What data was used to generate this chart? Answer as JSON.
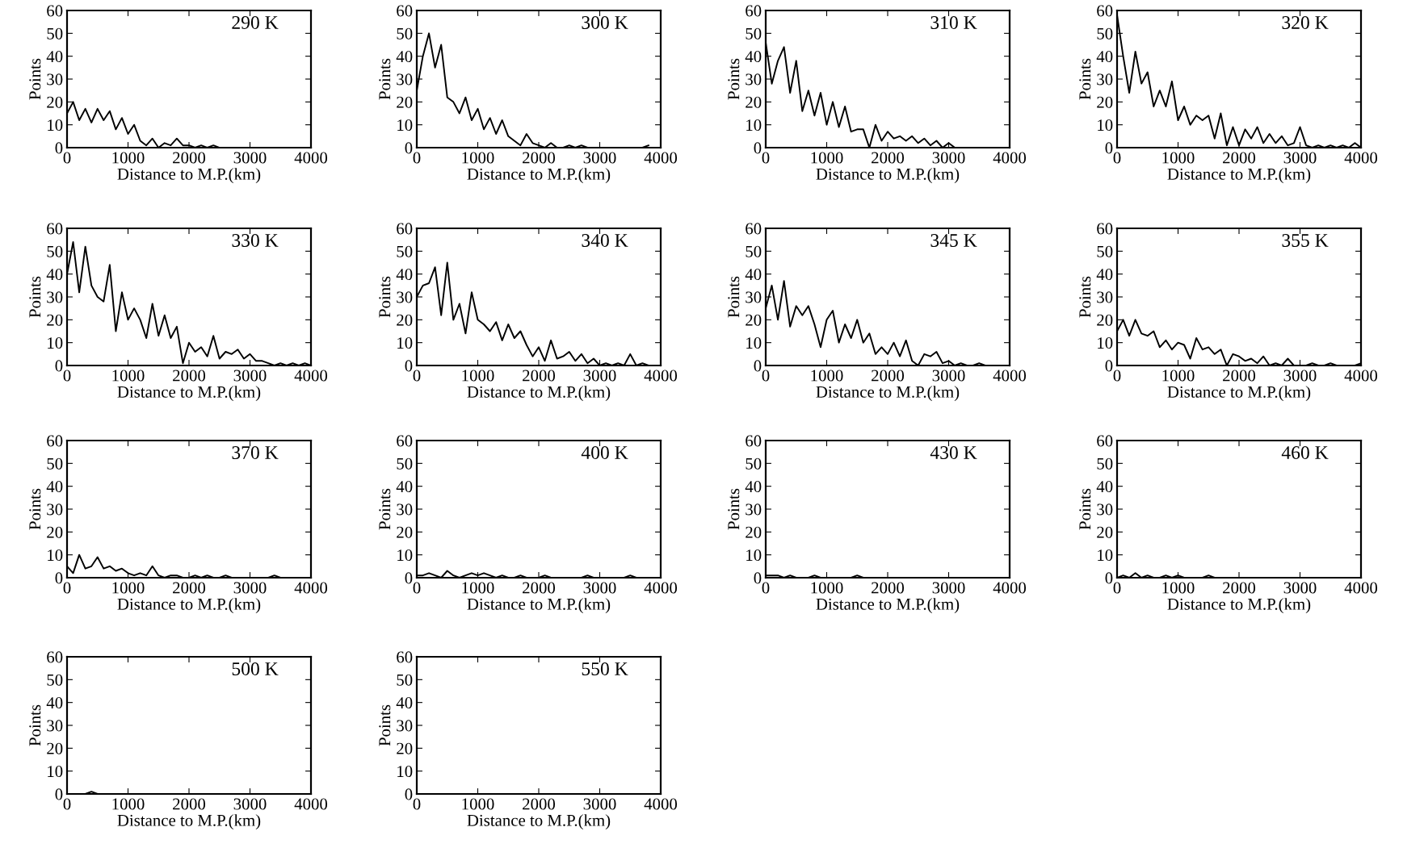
{
  "chart_data": [
    {
      "type": "line",
      "title": "290 K",
      "xlabel": "Distance to M.P.(km)",
      "ylabel": "Points",
      "xlim": [
        0,
        4000
      ],
      "ylim": [
        0,
        60
      ],
      "xticks": [
        0,
        1000,
        2000,
        3000,
        4000
      ],
      "yticks": [
        0,
        10,
        20,
        30,
        40,
        50,
        60
      ],
      "x": [
        0,
        100,
        200,
        300,
        400,
        500,
        600,
        700,
        800,
        900,
        1000,
        1100,
        1200,
        1300,
        1400,
        1500,
        1600,
        1700,
        1800,
        1900,
        2000,
        2100,
        2200,
        2300,
        2400,
        2500
      ],
      "series": [
        {
          "color": "#000000",
          "values": [
            15,
            20,
            12,
            17,
            11,
            17,
            12,
            16,
            8,
            13,
            6,
            10,
            3,
            1,
            4,
            0,
            2,
            1,
            4,
            1,
            1,
            0,
            1,
            0,
            1,
            0
          ]
        }
      ]
    },
    {
      "type": "line",
      "title": "300 K",
      "xlabel": "Distance to M.P.(km)",
      "ylabel": "Points",
      "xlim": [
        0,
        4000
      ],
      "ylim": [
        0,
        60
      ],
      "xticks": [
        0,
        1000,
        2000,
        3000,
        4000
      ],
      "yticks": [
        0,
        10,
        20,
        30,
        40,
        50,
        60
      ],
      "x": [
        0,
        100,
        200,
        300,
        400,
        500,
        600,
        700,
        800,
        900,
        1000,
        1100,
        1200,
        1300,
        1400,
        1500,
        1600,
        1700,
        1800,
        1900,
        2000,
        2100,
        2200,
        2300,
        2400,
        2500,
        2600,
        2700,
        2800,
        2900,
        3000,
        3100,
        3200,
        3300,
        3400,
        3500,
        3600,
        3700,
        3800
      ],
      "series": [
        {
          "color": "#000000",
          "values": [
            25,
            40,
            50,
            35,
            45,
            22,
            20,
            15,
            22,
            12,
            17,
            8,
            13,
            6,
            12,
            5,
            3,
            1,
            6,
            2,
            1,
            0,
            2,
            0,
            0,
            1,
            0,
            1,
            0,
            0,
            0,
            0,
            0,
            0,
            0,
            0,
            0,
            0,
            1
          ]
        }
      ]
    },
    {
      "type": "line",
      "title": "310 K",
      "xlabel": "Distance to M.P.(km)",
      "ylabel": "Points",
      "xlim": [
        0,
        4000
      ],
      "ylim": [
        0,
        60
      ],
      "xticks": [
        0,
        1000,
        2000,
        3000,
        4000
      ],
      "yticks": [
        0,
        10,
        20,
        30,
        40,
        50,
        60
      ],
      "x": [
        0,
        100,
        200,
        300,
        400,
        500,
        600,
        700,
        800,
        900,
        1000,
        1100,
        1200,
        1300,
        1400,
        1500,
        1600,
        1700,
        1800,
        1900,
        2000,
        2100,
        2200,
        2300,
        2400,
        2500,
        2600,
        2700,
        2800,
        2900,
        3000,
        3100
      ],
      "series": [
        {
          "color": "#000000",
          "values": [
            46,
            28,
            38,
            44,
            24,
            38,
            16,
            25,
            14,
            24,
            10,
            20,
            9,
            18,
            7,
            8,
            8,
            0,
            10,
            3,
            7,
            4,
            5,
            3,
            5,
            2,
            4,
            1,
            3,
            0,
            2,
            0
          ]
        }
      ]
    },
    {
      "type": "line",
      "title": "320 K",
      "xlabel": "Distance to M.P.(km)",
      "ylabel": "Points",
      "xlim": [
        0,
        4000
      ],
      "ylim": [
        0,
        60
      ],
      "xticks": [
        0,
        1000,
        2000,
        3000,
        4000
      ],
      "yticks": [
        0,
        10,
        20,
        30,
        40,
        50,
        60
      ],
      "x": [
        0,
        100,
        200,
        300,
        400,
        500,
        600,
        700,
        800,
        900,
        1000,
        1100,
        1200,
        1300,
        1400,
        1500,
        1600,
        1700,
        1800,
        1900,
        2000,
        2100,
        2200,
        2300,
        2400,
        2500,
        2600,
        2700,
        2800,
        2900,
        3000,
        3100,
        3200,
        3300,
        3400,
        3500,
        3600,
        3700,
        3800,
        3900,
        4000
      ],
      "series": [
        {
          "color": "#000000",
          "values": [
            58,
            40,
            24,
            42,
            28,
            33,
            18,
            25,
            18,
            29,
            12,
            18,
            10,
            14,
            12,
            14,
            4,
            15,
            1,
            9,
            1,
            8,
            4,
            9,
            2,
            6,
            2,
            5,
            1,
            2,
            9,
            1,
            0,
            1,
            0,
            1,
            0,
            1,
            0,
            2,
            0
          ]
        }
      ]
    },
    {
      "type": "line",
      "title": "330 K",
      "xlabel": "Distance to M.P.(km)",
      "ylabel": "Points",
      "xlim": [
        0,
        4000
      ],
      "ylim": [
        0,
        60
      ],
      "xticks": [
        0,
        1000,
        2000,
        3000,
        4000
      ],
      "yticks": [
        0,
        10,
        20,
        30,
        40,
        50,
        60
      ],
      "x": [
        0,
        100,
        200,
        300,
        400,
        500,
        600,
        700,
        800,
        900,
        1000,
        1100,
        1200,
        1300,
        1400,
        1500,
        1600,
        1700,
        1800,
        1900,
        2000,
        2100,
        2200,
        2300,
        2400,
        2500,
        2600,
        2700,
        2800,
        2900,
        3000,
        3100,
        3200,
        3300,
        3400,
        3500,
        3600,
        3700,
        3800,
        3900,
        4000
      ],
      "series": [
        {
          "color": "#000000",
          "values": [
            40,
            54,
            32,
            52,
            35,
            30,
            28,
            44,
            15,
            32,
            20,
            25,
            20,
            12,
            27,
            13,
            22,
            12,
            17,
            1,
            10,
            6,
            8,
            4,
            13,
            3,
            6,
            5,
            7,
            3,
            5,
            2,
            2,
            1,
            0,
            1,
            0,
            1,
            0,
            1,
            0
          ]
        }
      ]
    },
    {
      "type": "line",
      "title": "340 K",
      "xlabel": "Distance to M.P.(km)",
      "ylabel": "Points",
      "xlim": [
        0,
        4000
      ],
      "ylim": [
        0,
        60
      ],
      "xticks": [
        0,
        1000,
        2000,
        3000,
        4000
      ],
      "yticks": [
        0,
        10,
        20,
        30,
        40,
        50,
        60
      ],
      "x": [
        0,
        100,
        200,
        300,
        400,
        500,
        600,
        700,
        800,
        900,
        1000,
        1100,
        1200,
        1300,
        1400,
        1500,
        1600,
        1700,
        1800,
        1900,
        2000,
        2100,
        2200,
        2300,
        2400,
        2500,
        2600,
        2700,
        2800,
        2900,
        3000,
        3100,
        3200,
        3300,
        3400,
        3500,
        3600,
        3700,
        3800,
        3900,
        4000
      ],
      "series": [
        {
          "color": "#000000",
          "values": [
            30,
            35,
            36,
            43,
            22,
            45,
            20,
            27,
            14,
            32,
            20,
            18,
            15,
            19,
            11,
            18,
            12,
            15,
            9,
            4,
            8,
            2,
            11,
            3,
            4,
            6,
            2,
            5,
            1,
            3,
            0,
            1,
            0,
            1,
            0,
            5,
            0,
            1,
            0,
            0,
            0
          ]
        }
      ]
    },
    {
      "type": "line",
      "title": "345 K",
      "xlabel": "Distance to M.P.(km)",
      "ylabel": "Points",
      "xlim": [
        0,
        4000
      ],
      "ylim": [
        0,
        60
      ],
      "xticks": [
        0,
        1000,
        2000,
        3000,
        4000
      ],
      "yticks": [
        0,
        10,
        20,
        30,
        40,
        50,
        60
      ],
      "x": [
        0,
        100,
        200,
        300,
        400,
        500,
        600,
        700,
        800,
        900,
        1000,
        1100,
        1200,
        1300,
        1400,
        1500,
        1600,
        1700,
        1800,
        1900,
        2000,
        2100,
        2200,
        2300,
        2400,
        2500,
        2600,
        2700,
        2800,
        2900,
        3000,
        3100,
        3200,
        3300,
        3400,
        3500,
        3600,
        3700,
        3800,
        3900,
        4000
      ],
      "series": [
        {
          "color": "#000000",
          "values": [
            25,
            35,
            20,
            37,
            17,
            26,
            22,
            26,
            18,
            8,
            20,
            24,
            10,
            18,
            12,
            20,
            10,
            14,
            5,
            8,
            5,
            10,
            4,
            11,
            2,
            0,
            5,
            4,
            6,
            1,
            2,
            0,
            1,
            0,
            0,
            1,
            0,
            0,
            0,
            0,
            0
          ]
        }
      ]
    },
    {
      "type": "line",
      "title": "355 K",
      "xlabel": "Distance to M.P.(km)",
      "ylabel": "Points",
      "xlim": [
        0,
        4000
      ],
      "ylim": [
        0,
        60
      ],
      "xticks": [
        0,
        1000,
        2000,
        3000,
        4000
      ],
      "yticks": [
        0,
        10,
        20,
        30,
        40,
        50,
        60
      ],
      "x": [
        0,
        100,
        200,
        300,
        400,
        500,
        600,
        700,
        800,
        900,
        1000,
        1100,
        1200,
        1300,
        1400,
        1500,
        1600,
        1700,
        1800,
        1900,
        2000,
        2100,
        2200,
        2300,
        2400,
        2500,
        2600,
        2700,
        2800,
        2900,
        3000,
        3100,
        3200,
        3300,
        3400,
        3500,
        3600,
        3700,
        3800,
        3900,
        4000
      ],
      "series": [
        {
          "color": "#000000",
          "values": [
            15,
            20,
            13,
            20,
            14,
            13,
            15,
            8,
            11,
            7,
            10,
            9,
            3,
            12,
            7,
            8,
            5,
            7,
            0,
            5,
            4,
            2,
            3,
            1,
            4,
            0,
            1,
            0,
            3,
            0,
            0,
            0,
            1,
            0,
            0,
            1,
            0,
            0,
            0,
            0,
            1
          ]
        }
      ]
    },
    {
      "type": "line",
      "title": "370 K",
      "xlabel": "Distance to M.P.(km)",
      "ylabel": "Points",
      "xlim": [
        0,
        4000
      ],
      "ylim": [
        0,
        60
      ],
      "xticks": [
        0,
        1000,
        2000,
        3000,
        4000
      ],
      "yticks": [
        0,
        10,
        20,
        30,
        40,
        50,
        60
      ],
      "x": [
        0,
        100,
        200,
        300,
        400,
        500,
        600,
        700,
        800,
        900,
        1000,
        1100,
        1200,
        1300,
        1400,
        1500,
        1600,
        1700,
        1800,
        1900,
        2000,
        2100,
        2200,
        2300,
        2400,
        2500,
        2600,
        2700,
        2800,
        2900,
        3000,
        3100,
        3200,
        3300,
        3400,
        3500,
        3600,
        3700,
        3800,
        3900,
        4000
      ],
      "series": [
        {
          "color": "#000000",
          "values": [
            5,
            2,
            10,
            4,
            5,
            9,
            4,
            5,
            3,
            4,
            2,
            1,
            2,
            1,
            5,
            1,
            0,
            1,
            1,
            0,
            0,
            1,
            0,
            1,
            0,
            0,
            1,
            0,
            0,
            0,
            0,
            0,
            0,
            0,
            1,
            0,
            0,
            0,
            0,
            0,
            0
          ]
        }
      ]
    },
    {
      "type": "line",
      "title": "400 K",
      "xlabel": "Distance to M.P.(km)",
      "ylabel": "Points",
      "xlim": [
        0,
        4000
      ],
      "ylim": [
        0,
        60
      ],
      "xticks": [
        0,
        1000,
        2000,
        3000,
        4000
      ],
      "yticks": [
        0,
        10,
        20,
        30,
        40,
        50,
        60
      ],
      "x": [
        0,
        100,
        200,
        300,
        400,
        500,
        600,
        700,
        800,
        900,
        1000,
        1100,
        1200,
        1300,
        1400,
        1500,
        1600,
        1700,
        1800,
        1900,
        2000,
        2100,
        2200,
        2300,
        2400,
        2500,
        2600,
        2700,
        2800,
        2900,
        3000,
        3100,
        3200,
        3300,
        3400,
        3500,
        3600,
        3700,
        3800,
        3900,
        4000
      ],
      "series": [
        {
          "color": "#000000",
          "values": [
            1,
            1,
            2,
            1,
            0,
            3,
            1,
            0,
            1,
            2,
            1,
            2,
            1,
            0,
            1,
            0,
            0,
            1,
            0,
            0,
            0,
            1,
            0,
            0,
            0,
            0,
            0,
            0,
            1,
            0,
            0,
            0,
            0,
            0,
            0,
            1,
            0,
            0,
            0,
            0,
            0
          ]
        }
      ]
    },
    {
      "type": "line",
      "title": "430 K",
      "xlabel": "Distance to M.P.(km)",
      "ylabel": "Points",
      "xlim": [
        0,
        4000
      ],
      "ylim": [
        0,
        60
      ],
      "xticks": [
        0,
        1000,
        2000,
        3000,
        4000
      ],
      "yticks": [
        0,
        10,
        20,
        30,
        40,
        50,
        60
      ],
      "x": [
        0,
        100,
        200,
        300,
        400,
        500,
        600,
        700,
        800,
        900,
        1000,
        1100,
        1200,
        1300,
        1400,
        1500,
        1600,
        1700,
        1800,
        1900,
        2000,
        2100,
        2200,
        2300,
        2400,
        2500,
        2600,
        2700,
        2800,
        2900,
        3000,
        3100,
        3200,
        3300,
        3400,
        3500,
        3600,
        3700,
        3800
      ],
      "series": [
        {
          "color": "#000000",
          "values": [
            1,
            1,
            1,
            0,
            1,
            0,
            0,
            0,
            1,
            0,
            0,
            0,
            0,
            0,
            0,
            1,
            0,
            0,
            0,
            0,
            0,
            0,
            0,
            0,
            0,
            0,
            0,
            0,
            0,
            0,
            0,
            0,
            0,
            0,
            0,
            0,
            0,
            0,
            0
          ]
        }
      ]
    },
    {
      "type": "line",
      "title": "460 K",
      "xlabel": "Distance to M.P.(km)",
      "ylabel": "Points",
      "xlim": [
        0,
        4000
      ],
      "ylim": [
        0,
        60
      ],
      "xticks": [
        0,
        1000,
        2000,
        3000,
        4000
      ],
      "yticks": [
        0,
        10,
        20,
        30,
        40,
        50,
        60
      ],
      "x": [
        0,
        100,
        200,
        300,
        400,
        500,
        600,
        700,
        800,
        900,
        1000,
        1100,
        1200,
        1300,
        1400,
        1500,
        1600,
        1700,
        1800,
        1900,
        2000,
        2100,
        2200,
        2300,
        2400,
        2500,
        2600,
        2700,
        2800,
        2900,
        3000,
        3100
      ],
      "series": [
        {
          "color": "#000000",
          "values": [
            0,
            1,
            0,
            2,
            0,
            1,
            0,
            0,
            1,
            0,
            1,
            0,
            0,
            0,
            0,
            1,
            0,
            0,
            0,
            0,
            0,
            0,
            0,
            0,
            0,
            0,
            0,
            0,
            0,
            0,
            0,
            0
          ]
        }
      ]
    },
    {
      "type": "line",
      "title": "500 K",
      "xlabel": "Distance to M.P.(km)",
      "ylabel": "Points",
      "xlim": [
        0,
        4000
      ],
      "ylim": [
        0,
        60
      ],
      "xticks": [
        0,
        1000,
        2000,
        3000,
        4000
      ],
      "yticks": [
        0,
        10,
        20,
        30,
        40,
        50,
        60
      ],
      "x": [
        0,
        100,
        200,
        300,
        400,
        500,
        600,
        700,
        800,
        900,
        1000
      ],
      "series": [
        {
          "color": "#000000",
          "values": [
            0,
            0,
            0,
            0,
            1,
            0,
            0,
            0,
            0,
            0,
            0
          ]
        }
      ]
    },
    {
      "type": "line",
      "title": "550 K",
      "xlabel": "Distance to M.P.(km)",
      "ylabel": "Points",
      "xlim": [
        0,
        4000
      ],
      "ylim": [
        0,
        60
      ],
      "xticks": [
        0,
        1000,
        2000,
        3000,
        4000
      ],
      "yticks": [
        0,
        10,
        20,
        30,
        40,
        50,
        60
      ]
    }
  ]
}
